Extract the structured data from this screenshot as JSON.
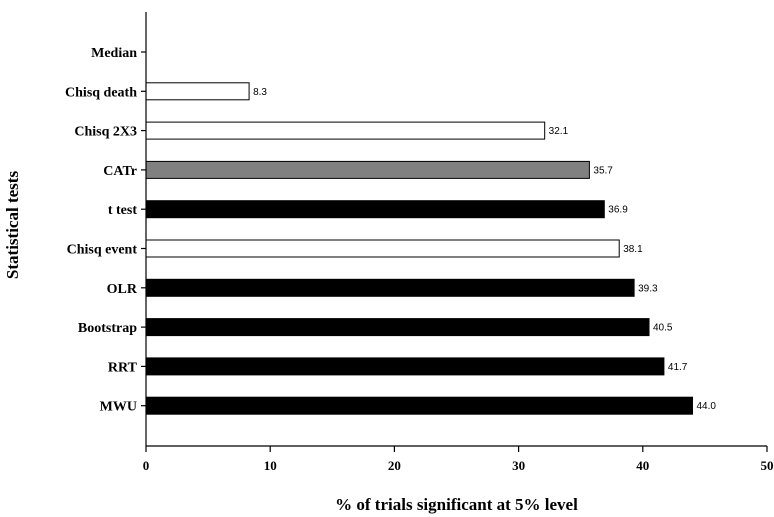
{
  "chart_data": {
    "type": "bar",
    "orientation": "horizontal",
    "categories": [
      "Median",
      "Chisq death",
      "Chisq 2X3",
      "CATr",
      "t test",
      "Chisq event",
      "OLR",
      "Bootstrap",
      "RRT",
      "MWU"
    ],
    "values": [
      null,
      8.3,
      32.1,
      35.7,
      36.9,
      38.1,
      39.3,
      40.5,
      41.7,
      44.0
    ],
    "value_labels": [
      "",
      "8.3",
      "32.1",
      "35.7",
      "36.9",
      "38.1",
      "39.3",
      "40.5",
      "41.7",
      "44.0"
    ],
    "bar_colors": [
      "#ffffff",
      "#ffffff",
      "#ffffff",
      "#808080",
      "#000000",
      "#ffffff",
      "#000000",
      "#000000",
      "#000000",
      "#000000"
    ],
    "xlabel": "% of trials significant at 5% level",
    "ylabel": "Statistical tests",
    "xlim": [
      0,
      50
    ],
    "xticks": [
      "0",
      "10",
      "20",
      "30",
      "40",
      "50"
    ],
    "grid": false,
    "legend": "none"
  }
}
